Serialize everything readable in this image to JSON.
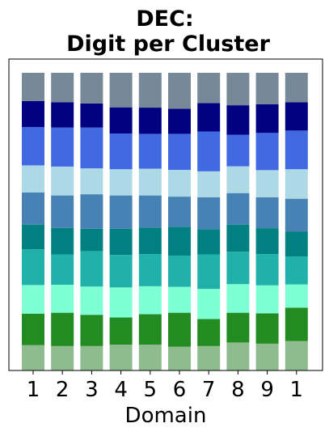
{
  "chart_data": {
    "type": "bar",
    "stacked": true,
    "title": [
      "DEC:",
      "Digit per Cluster"
    ],
    "xlabel": "Domain",
    "ylabel": "",
    "categories": [
      "1",
      "2",
      "3",
      "4",
      "5",
      "6",
      "7",
      "8",
      "9",
      "1"
    ],
    "ylim": [
      0,
      1
    ],
    "y_ticks_shown": false,
    "grid": false,
    "legend": "none",
    "colors": [
      "#8fbc8f",
      "#228b22",
      "#7fffd4",
      "#20b2aa",
      "#008080",
      "#4682b4",
      "#add8e6",
      "#4169e1",
      "#000080",
      "#778899"
    ],
    "series": [
      {
        "values": [
          0.085,
          0.082,
          0.082,
          0.087,
          0.087,
          0.08,
          0.082,
          0.094,
          0.09,
          0.099
        ]
      },
      {
        "values": [
          0.106,
          0.112,
          0.105,
          0.091,
          0.102,
          0.114,
          0.091,
          0.1,
          0.102,
          0.112
        ]
      },
      {
        "values": [
          0.096,
          0.094,
          0.095,
          0.101,
          0.094,
          0.087,
          0.101,
          0.096,
          0.094,
          0.078
        ]
      },
      {
        "values": [
          0.12,
          0.102,
          0.119,
          0.109,
          0.108,
          0.105,
          0.116,
          0.109,
          0.105,
          0.094
        ]
      },
      {
        "values": [
          0.083,
          0.089,
          0.075,
          0.088,
          0.089,
          0.097,
          0.084,
          0.091,
          0.087,
          0.083
        ]
      },
      {
        "values": [
          0.108,
          0.109,
          0.116,
          0.112,
          0.108,
          0.101,
          0.108,
          0.106,
          0.104,
          0.111
        ]
      },
      {
        "values": [
          0.091,
          0.097,
          0.087,
          0.088,
          0.09,
          0.09,
          0.087,
          0.09,
          0.091,
          0.099
        ]
      },
      {
        "values": [
          0.129,
          0.131,
          0.137,
          0.12,
          0.117,
          0.121,
          0.134,
          0.106,
          0.125,
          0.13
        ]
      },
      {
        "values": [
          0.087,
          0.085,
          0.081,
          0.088,
          0.088,
          0.084,
          0.095,
          0.099,
          0.096,
          0.095
        ]
      },
      {
        "values": [
          0.095,
          0.099,
          0.103,
          0.116,
          0.117,
          0.121,
          0.102,
          0.109,
          0.106,
          0.099
        ]
      }
    ]
  }
}
